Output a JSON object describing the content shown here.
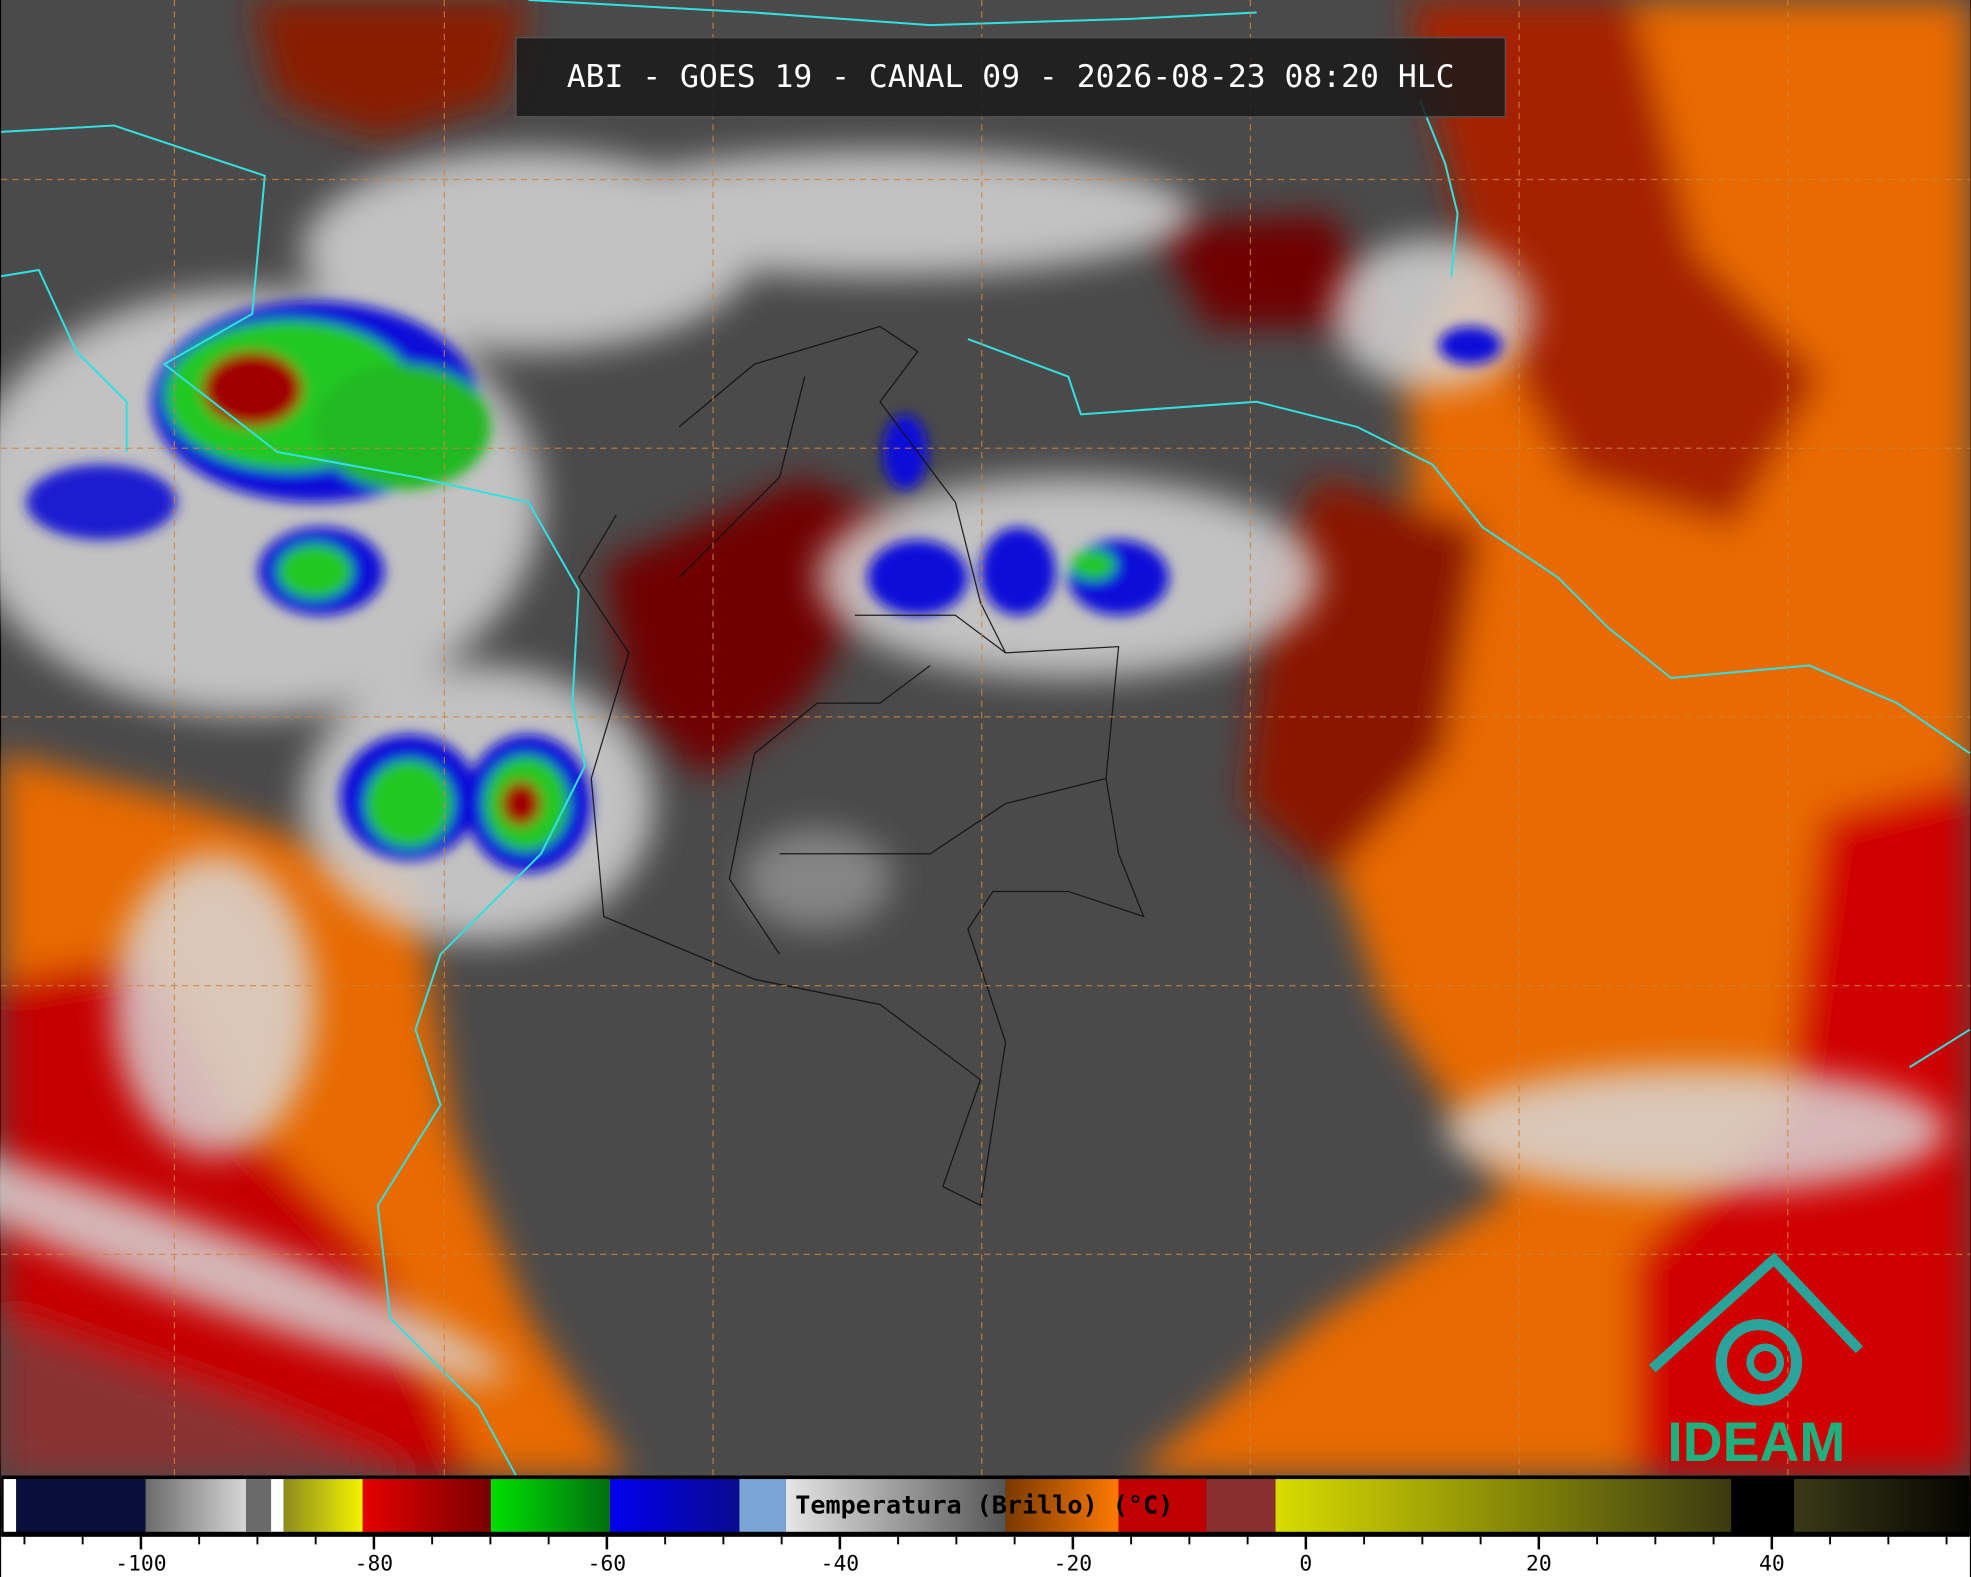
{
  "header": {
    "title": "ABI - GOES 19 - CANAL 09 - 2026-08-23 08:20 HLC"
  },
  "colorbar": {
    "label": "Temperatura (Brillo) (°C)",
    "range": [
      -112,
      57
    ],
    "ticks": [
      -100,
      -80,
      -60,
      -40,
      -20,
      0,
      20,
      40
    ],
    "minor_step": 5
  },
  "logo": {
    "text": "IDEAM"
  }
}
